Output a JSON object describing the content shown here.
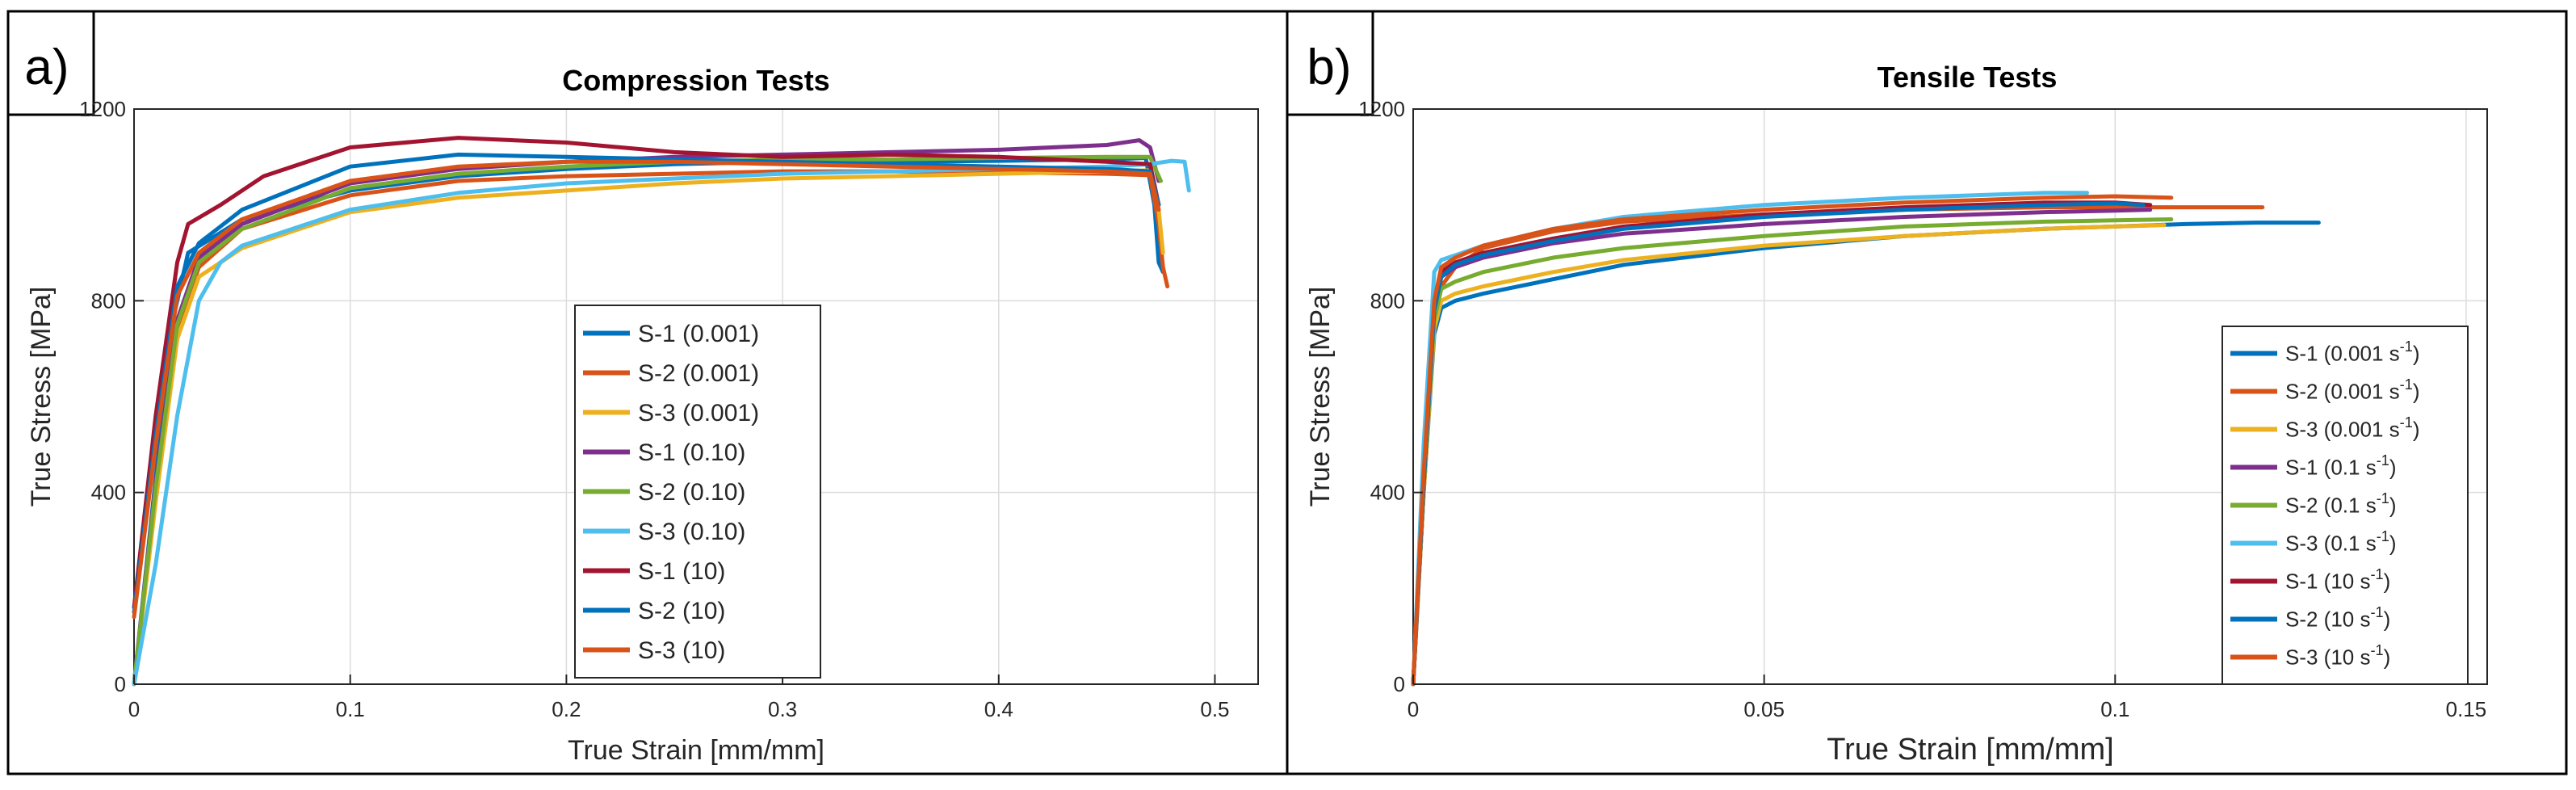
{
  "chart_data": [
    {
      "panel_label": "a)",
      "type": "line",
      "title": "Compression Tests",
      "xlabel": "True Strain [mm/mm]",
      "ylabel": "True Stress [MPa]",
      "xlim": [
        0,
        0.52
      ],
      "ylim": [
        0,
        1200
      ],
      "xticks": [
        0,
        0.1,
        0.2,
        0.3,
        0.4,
        0.5
      ],
      "xtick_labels": [
        "0",
        "0.1",
        "0.2",
        "0.3",
        "0.4",
        "0.5"
      ],
      "yticks": [
        0,
        400,
        800,
        1200
      ],
      "ytick_labels": [
        "0",
        "400",
        "800",
        "1200"
      ],
      "grid": true,
      "legend_position": "center-right",
      "series": [
        {
          "name": "S-1 (0.001)",
          "color": "#0072BD",
          "x": [
            0,
            0.01,
            0.018,
            0.025,
            0.05,
            0.1,
            0.15,
            0.2,
            0.25,
            0.3,
            0.35,
            0.4,
            0.45,
            0.468,
            0.472,
            0.474,
            0.476
          ],
          "y": [
            0,
            430,
            760,
            900,
            970,
            1030,
            1060,
            1075,
            1085,
            1090,
            1090,
            1092,
            1095,
            1098,
            1000,
            880,
            860
          ]
        },
        {
          "name": "S-2 (0.001)",
          "color": "#D95319",
          "x": [
            0,
            0.01,
            0.02,
            0.03,
            0.05,
            0.1,
            0.15,
            0.2,
            0.25,
            0.3,
            0.35,
            0.4,
            0.45,
            0.47,
            0.474,
            0.476,
            0.478
          ],
          "y": [
            0,
            400,
            740,
            870,
            950,
            1020,
            1050,
            1060,
            1065,
            1070,
            1070,
            1068,
            1065,
            1062,
            960,
            870,
            830
          ]
        },
        {
          "name": "S-3 (0.001)",
          "color": "#EDB120",
          "x": [
            0,
            0.01,
            0.02,
            0.03,
            0.05,
            0.1,
            0.15,
            0.2,
            0.25,
            0.3,
            0.35,
            0.4,
            0.45,
            0.47,
            0.474,
            0.476
          ],
          "y": [
            0,
            380,
            720,
            850,
            910,
            985,
            1015,
            1030,
            1045,
            1055,
            1060,
            1065,
            1070,
            1072,
            990,
            900
          ]
        },
        {
          "name": "S-1 (0.10)",
          "color": "#7E2F8E",
          "x": [
            0,
            0.01,
            0.02,
            0.03,
            0.05,
            0.1,
            0.15,
            0.2,
            0.25,
            0.3,
            0.35,
            0.4,
            0.45,
            0.465,
            0.47,
            0.474
          ],
          "y": [
            0,
            420,
            760,
            890,
            960,
            1045,
            1075,
            1090,
            1100,
            1105,
            1110,
            1115,
            1125,
            1135,
            1120,
            1050
          ]
        },
        {
          "name": "S-2 (0.10)",
          "color": "#77AC30",
          "x": [
            0,
            0.01,
            0.02,
            0.03,
            0.05,
            0.1,
            0.15,
            0.2,
            0.25,
            0.3,
            0.35,
            0.4,
            0.45,
            0.47,
            0.475
          ],
          "y": [
            0,
            410,
            750,
            880,
            950,
            1035,
            1065,
            1080,
            1090,
            1095,
            1095,
            1098,
            1100,
            1100,
            1050
          ]
        },
        {
          "name": "S-3 (0.10)",
          "color": "#4DBEEE",
          "x": [
            0,
            0.01,
            0.02,
            0.03,
            0.035,
            0.04,
            0.05,
            0.1,
            0.15,
            0.2,
            0.25,
            0.3,
            0.35,
            0.4,
            0.45,
            0.47,
            0.48,
            0.486,
            0.488
          ],
          "y": [
            0,
            250,
            560,
            800,
            840,
            880,
            915,
            990,
            1025,
            1045,
            1055,
            1065,
            1070,
            1075,
            1080,
            1085,
            1092,
            1090,
            1030
          ]
        },
        {
          "name": "S-1 (10)",
          "color": "#A2142F",
          "x": [
            0,
            0.01,
            0.02,
            0.025,
            0.04,
            0.06,
            0.1,
            0.15,
            0.2,
            0.25,
            0.3,
            0.35,
            0.4,
            0.45,
            0.47,
            0.474
          ],
          "y": [
            160,
            560,
            880,
            960,
            1000,
            1060,
            1120,
            1140,
            1130,
            1110,
            1100,
            1105,
            1100,
            1090,
            1085,
            1000
          ]
        },
        {
          "name": "S-2 (10)",
          "color": "#0072BD",
          "x": [
            0,
            0.01,
            0.02,
            0.03,
            0.05,
            0.1,
            0.15,
            0.2,
            0.25,
            0.3,
            0.35,
            0.4,
            0.45,
            0.47,
            0.474
          ],
          "y": [
            150,
            520,
            830,
            920,
            990,
            1080,
            1105,
            1100,
            1095,
            1090,
            1085,
            1080,
            1075,
            1070,
            1000
          ]
        },
        {
          "name": "S-3 (10)",
          "color": "#D95319",
          "x": [
            0,
            0.01,
            0.02,
            0.03,
            0.05,
            0.1,
            0.15,
            0.2,
            0.25,
            0.3,
            0.35,
            0.4,
            0.45,
            0.47,
            0.474
          ],
          "y": [
            140,
            500,
            810,
            900,
            970,
            1050,
            1080,
            1090,
            1090,
            1085,
            1080,
            1075,
            1070,
            1065,
            990
          ]
        }
      ]
    },
    {
      "panel_label": "b)",
      "type": "line",
      "title": "Tensile Tests",
      "xlabel": "True Strain [mm/mm]",
      "ylabel": "True Stress [MPa]",
      "xlim": [
        0,
        0.153
      ],
      "ylim": [
        0,
        1200
      ],
      "xticks": [
        0,
        0.05,
        0.1,
        0.15
      ],
      "xtick_labels": [
        "0",
        "0.05",
        "0.1",
        "0.15"
      ],
      "yticks": [
        0,
        400,
        800,
        1200
      ],
      "ytick_labels": [
        "0",
        "400",
        "800",
        "1200"
      ],
      "grid": true,
      "legend_position": "bottom-right",
      "series": [
        {
          "name": "S-1 (0.001",
          "unit": "s",
          "exponent": "-1",
          "color": "#0072BD",
          "x": [
            0,
            0.0015,
            0.003,
            0.004,
            0.006,
            0.01,
            0.02,
            0.03,
            0.05,
            0.07,
            0.09,
            0.1,
            0.11,
            0.12,
            0.129
          ],
          "y": [
            0,
            400,
            730,
            785,
            800,
            815,
            845,
            875,
            910,
            935,
            950,
            955,
            960,
            963,
            963
          ]
        },
        {
          "name": "S-2 (0.001",
          "unit": "s",
          "exponent": "-1",
          "color": "#D95319",
          "x": [
            0,
            0.0015,
            0.003,
            0.004,
            0.006,
            0.01,
            0.02,
            0.03,
            0.05,
            0.07,
            0.09,
            0.1,
            0.11,
            0.121
          ],
          "y": [
            0,
            400,
            760,
            830,
            870,
            910,
            945,
            965,
            980,
            990,
            995,
            995,
            995,
            995
          ]
        },
        {
          "name": "S-3 (0.001",
          "unit": "s",
          "exponent": "-1",
          "color": "#EDB120",
          "x": [
            0,
            0.0015,
            0.003,
            0.004,
            0.006,
            0.01,
            0.02,
            0.03,
            0.05,
            0.07,
            0.09,
            0.1,
            0.107
          ],
          "y": [
            0,
            400,
            740,
            800,
            815,
            830,
            860,
            885,
            915,
            935,
            950,
            955,
            958
          ]
        },
        {
          "name": "S-1 (0.1",
          "unit": "s",
          "exponent": "-1",
          "color": "#7E2F8E",
          "x": [
            0,
            0.0015,
            0.003,
            0.004,
            0.006,
            0.01,
            0.02,
            0.03,
            0.05,
            0.07,
            0.09,
            0.1,
            0.105
          ],
          "y": [
            0,
            420,
            780,
            850,
            870,
            890,
            920,
            940,
            960,
            975,
            985,
            988,
            990
          ]
        },
        {
          "name": "S-2 (0.1",
          "unit": "s",
          "exponent": "-1",
          "color": "#77AC30",
          "x": [
            0,
            0.0015,
            0.003,
            0.004,
            0.006,
            0.01,
            0.02,
            0.03,
            0.05,
            0.07,
            0.09,
            0.1,
            0.108
          ],
          "y": [
            0,
            410,
            760,
            825,
            840,
            860,
            890,
            910,
            935,
            955,
            965,
            968,
            970
          ]
        },
        {
          "name": "S-3 (0.1",
          "unit": "s",
          "exponent": "-1",
          "color": "#4DBEEE",
          "x": [
            0,
            0.0015,
            0.003,
            0.004,
            0.006,
            0.01,
            0.02,
            0.03,
            0.05,
            0.07,
            0.09,
            0.096
          ],
          "y": [
            0,
            500,
            860,
            885,
            895,
            915,
            950,
            975,
            1000,
            1015,
            1025,
            1025
          ]
        },
        {
          "name": "S-1 (10",
          "unit": "s",
          "exponent": "-1",
          "color": "#A2142F",
          "x": [
            0,
            0.0015,
            0.003,
            0.004,
            0.006,
            0.01,
            0.02,
            0.03,
            0.05,
            0.07,
            0.09,
            0.1,
            0.105
          ],
          "y": [
            0,
            420,
            790,
            860,
            880,
            900,
            930,
            955,
            980,
            995,
            1005,
            1005,
            1000
          ]
        },
        {
          "name": "S-2 (10",
          "unit": "s",
          "exponent": "-1",
          "color": "#0072BD",
          "x": [
            0,
            0.0015,
            0.003,
            0.004,
            0.006,
            0.01,
            0.02,
            0.03,
            0.05,
            0.07,
            0.09,
            0.1,
            0.104
          ],
          "y": [
            0,
            420,
            780,
            850,
            875,
            895,
            925,
            950,
            975,
            990,
            1000,
            1003,
            1000
          ]
        },
        {
          "name": "S-3 (10",
          "unit": "s",
          "exponent": "-1",
          "color": "#D95319",
          "x": [
            0,
            0.0015,
            0.003,
            0.004,
            0.006,
            0.01,
            0.02,
            0.03,
            0.05,
            0.07,
            0.09,
            0.1,
            0.108
          ],
          "y": [
            0,
            440,
            800,
            870,
            890,
            915,
            950,
            970,
            990,
            1005,
            1015,
            1018,
            1015
          ]
        }
      ]
    }
  ]
}
